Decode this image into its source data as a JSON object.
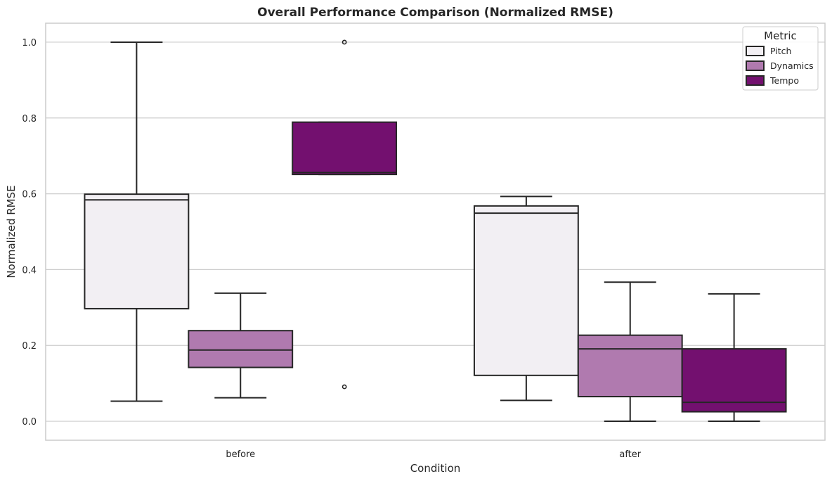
{
  "chart_data": {
    "type": "box",
    "title": "Overall Performance Comparison (Normalized RMSE)",
    "xlabel": "Condition",
    "ylabel": "Normalized RMSE",
    "categories": [
      "before",
      "after"
    ],
    "ylim": [
      -0.05,
      1.05
    ],
    "yticks": [
      "0.0",
      "0.2",
      "0.4",
      "0.6",
      "0.8",
      "1.0"
    ],
    "grid": true,
    "legend": {
      "title": "Metric",
      "placement": "top-right"
    },
    "series": [
      {
        "name": "Pitch",
        "color": "#f2eff3",
        "boxes": [
          {
            "category": "before",
            "whisker_low": 0.053,
            "q1": 0.297,
            "median": 0.584,
            "q3": 0.599,
            "whisker_high": 1.0,
            "outliers": []
          },
          {
            "category": "after",
            "whisker_low": 0.055,
            "q1": 0.121,
            "median": 0.549,
            "q3": 0.568,
            "whisker_high": 0.593,
            "outliers": []
          }
        ]
      },
      {
        "name": "Dynamics",
        "color": "#b07aaf",
        "boxes": [
          {
            "category": "before",
            "whisker_low": 0.062,
            "q1": 0.142,
            "median": 0.188,
            "q3": 0.239,
            "whisker_high": 0.338,
            "outliers": []
          },
          {
            "category": "after",
            "whisker_low": 0.0,
            "q1": 0.065,
            "median": 0.191,
            "q3": 0.227,
            "whisker_high": 0.367,
            "outliers": []
          }
        ]
      },
      {
        "name": "Tempo",
        "color": "#73106f",
        "boxes": [
          {
            "category": "before",
            "whisker_low": 0.651,
            "q1": 0.651,
            "median": 0.656,
            "q3": 0.789,
            "whisker_high": 0.789,
            "outliers": [
              1.0,
              0.091
            ]
          },
          {
            "category": "after",
            "whisker_low": 0.0,
            "q1": 0.025,
            "median": 0.05,
            "q3": 0.191,
            "whisker_high": 0.336,
            "outliers": []
          }
        ]
      }
    ]
  }
}
